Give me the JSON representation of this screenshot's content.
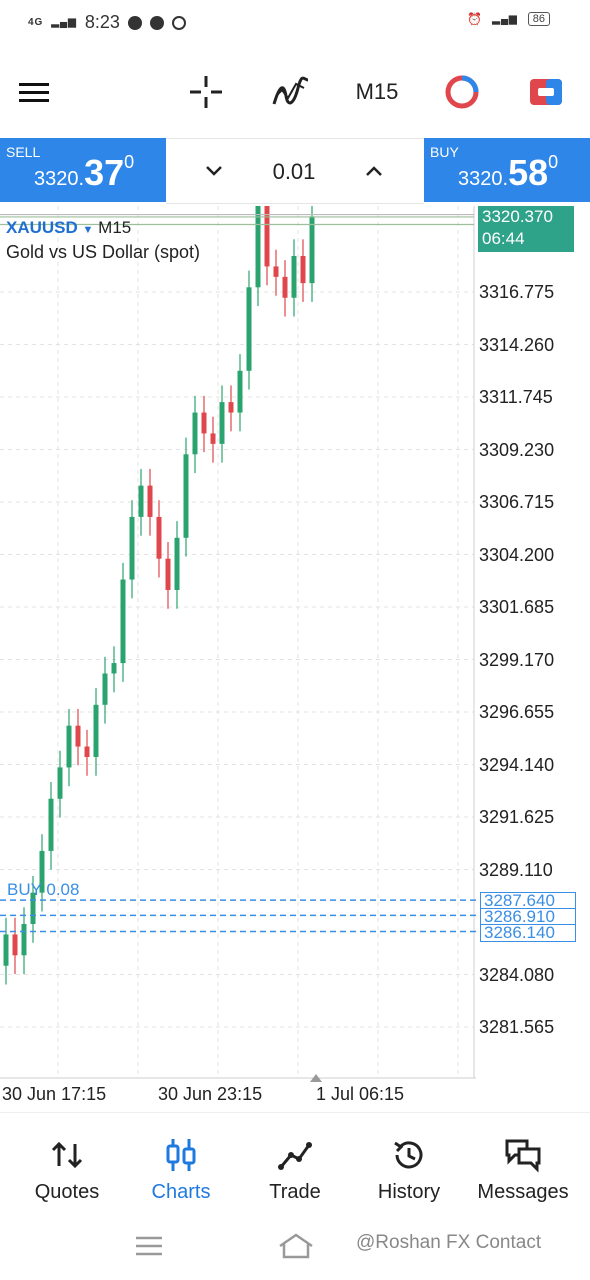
{
  "status_bar": {
    "time": "8:23",
    "network": "4G",
    "battery": "86"
  },
  "toolbar": {
    "timeframe": "M15"
  },
  "trade": {
    "sell_label": "SELL",
    "sell_price_main": "3320.",
    "sell_price_big": "37",
    "sell_price_sup": "0",
    "buy_label": "BUY",
    "buy_price_main": "3320.",
    "buy_price_big": "58",
    "buy_price_sup": "0",
    "lot": "0.01"
  },
  "chart": {
    "symbol": "XAUUSD",
    "timeframe": "M15",
    "description": "Gold vs US Dollar (spot)",
    "current_price": "3320.370",
    "countdown": "06:44",
    "y_labels": [
      "3316.775",
      "3314.260",
      "3311.745",
      "3309.230",
      "3306.715",
      "3304.200",
      "3301.685",
      "3299.170",
      "3296.655",
      "3294.140",
      "3291.625",
      "3289.110",
      "3284.080",
      "3281.565"
    ],
    "x_labels": [
      "30 Jun 17:15",
      "30 Jun 23:15",
      "1 Jul 06:15"
    ],
    "position_label": "BUY 0.08",
    "levels": [
      "3287.640",
      "3286.910",
      "3286.140"
    ],
    "up_color": "#2aa36f",
    "down_color": "#e0474c"
  },
  "nav": {
    "items": [
      {
        "label": "Quotes"
      },
      {
        "label": "Charts"
      },
      {
        "label": "Trade"
      },
      {
        "label": "History"
      },
      {
        "label": "Messages"
      }
    ]
  },
  "watermark": "@Roshan FX Contact"
}
